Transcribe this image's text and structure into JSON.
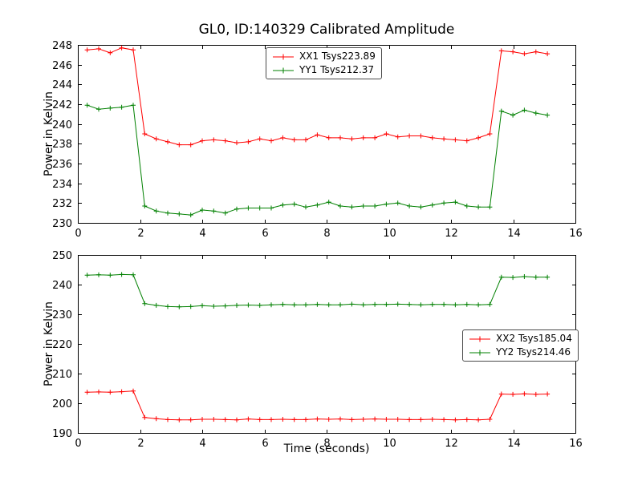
{
  "figure": {
    "background_color": "#ffffff",
    "frame_color": "#000000"
  },
  "chart_data": [
    {
      "type": "line",
      "title": "GL0, ID:140329 Calibrated Amplitude",
      "xlabel": "",
      "ylabel": "Power in Kelvin",
      "xlim": [
        0,
        16
      ],
      "ylim": [
        230,
        248
      ],
      "xticks": [
        0,
        2,
        4,
        6,
        8,
        10,
        12,
        14,
        16
      ],
      "yticks": [
        230,
        232,
        234,
        236,
        238,
        240,
        242,
        244,
        246,
        248
      ],
      "grid": false,
      "marker": "+",
      "legend_position": "upper-center",
      "series": [
        {
          "name": "XX1 Tsys223.89",
          "color": "#ff0000",
          "x": [
            0.3,
            0.67,
            1.04,
            1.41,
            1.78,
            2.15,
            2.52,
            2.89,
            3.26,
            3.63,
            4.0,
            4.37,
            4.74,
            5.11,
            5.48,
            5.85,
            6.22,
            6.59,
            6.96,
            7.33,
            7.7,
            8.07,
            8.44,
            8.81,
            9.18,
            9.55,
            9.92,
            10.29,
            10.66,
            11.03,
            11.4,
            11.77,
            12.14,
            12.51,
            12.88,
            13.25,
            13.62,
            13.99,
            14.36,
            14.73,
            15.1
          ],
          "y": [
            247.5,
            247.6,
            247.2,
            247.7,
            247.5,
            239.0,
            238.5,
            238.2,
            237.9,
            237.9,
            238.3,
            238.4,
            238.3,
            238.1,
            238.2,
            238.5,
            238.3,
            238.6,
            238.4,
            238.4,
            238.9,
            238.6,
            238.6,
            238.5,
            238.6,
            238.6,
            239.0,
            238.7,
            238.8,
            238.8,
            238.6,
            238.5,
            238.4,
            238.3,
            238.6,
            239.0,
            247.4,
            247.3,
            247.1,
            247.3,
            247.1
          ]
        },
        {
          "name": "YY1 Tsys212.37",
          "color": "#008000",
          "x": [
            0.3,
            0.67,
            1.04,
            1.41,
            1.78,
            2.15,
            2.52,
            2.89,
            3.26,
            3.63,
            4.0,
            4.37,
            4.74,
            5.11,
            5.48,
            5.85,
            6.22,
            6.59,
            6.96,
            7.33,
            7.7,
            8.07,
            8.44,
            8.81,
            9.18,
            9.55,
            9.92,
            10.29,
            10.66,
            11.03,
            11.4,
            11.77,
            12.14,
            12.51,
            12.88,
            13.25,
            13.62,
            13.99,
            14.36,
            14.73,
            15.1
          ],
          "y": [
            241.9,
            241.5,
            241.6,
            241.7,
            241.9,
            231.7,
            231.2,
            231.0,
            230.9,
            230.8,
            231.3,
            231.2,
            231.0,
            231.4,
            231.5,
            231.5,
            231.5,
            231.8,
            231.9,
            231.6,
            231.8,
            232.1,
            231.7,
            231.6,
            231.7,
            231.7,
            231.9,
            232.0,
            231.7,
            231.6,
            231.8,
            232.0,
            232.1,
            231.7,
            231.6,
            231.6,
            241.3,
            240.9,
            241.4,
            241.1,
            240.9
          ]
        }
      ]
    },
    {
      "type": "line",
      "title": "",
      "xlabel": "Time (seconds)",
      "ylabel": "Power in Kelvin",
      "xlim": [
        0,
        16
      ],
      "ylim": [
        190,
        250
      ],
      "xticks": [
        0,
        2,
        4,
        6,
        8,
        10,
        12,
        14,
        16
      ],
      "yticks": [
        190,
        200,
        210,
        220,
        230,
        240,
        250
      ],
      "grid": false,
      "marker": "+",
      "legend_position": "center-right",
      "series": [
        {
          "name": "XX2 Tsys185.04",
          "color": "#ff0000",
          "x": [
            0.3,
            0.67,
            1.04,
            1.41,
            1.78,
            2.15,
            2.52,
            2.89,
            3.26,
            3.63,
            4.0,
            4.37,
            4.74,
            5.11,
            5.48,
            5.85,
            6.22,
            6.59,
            6.96,
            7.33,
            7.7,
            8.07,
            8.44,
            8.81,
            9.18,
            9.55,
            9.92,
            10.29,
            10.66,
            11.03,
            11.4,
            11.77,
            12.14,
            12.51,
            12.88,
            13.25,
            13.62,
            13.99,
            14.36,
            14.73,
            15.1
          ],
          "y": [
            203.7,
            203.8,
            203.7,
            203.9,
            204.1,
            195.2,
            194.8,
            194.5,
            194.4,
            194.4,
            194.6,
            194.6,
            194.5,
            194.4,
            194.7,
            194.5,
            194.5,
            194.6,
            194.5,
            194.5,
            194.7,
            194.6,
            194.7,
            194.5,
            194.6,
            194.7,
            194.6,
            194.6,
            194.5,
            194.5,
            194.6,
            194.5,
            194.4,
            194.5,
            194.4,
            194.6,
            203.1,
            203.0,
            203.2,
            203.0,
            203.1
          ]
        },
        {
          "name": "YY2 Tsys214.46",
          "color": "#008000",
          "x": [
            0.3,
            0.67,
            1.04,
            1.41,
            1.78,
            2.15,
            2.52,
            2.89,
            3.26,
            3.63,
            4.0,
            4.37,
            4.74,
            5.11,
            5.48,
            5.85,
            6.22,
            6.59,
            6.96,
            7.33,
            7.7,
            8.07,
            8.44,
            8.81,
            9.18,
            9.55,
            9.92,
            10.29,
            10.66,
            11.03,
            11.4,
            11.77,
            12.14,
            12.51,
            12.88,
            13.25,
            13.62,
            13.99,
            14.36,
            14.73,
            15.1
          ],
          "y": [
            243.2,
            243.3,
            243.2,
            243.4,
            243.3,
            233.6,
            233.0,
            232.6,
            232.5,
            232.6,
            232.9,
            232.7,
            232.8,
            233.0,
            233.1,
            233.0,
            233.2,
            233.3,
            233.2,
            233.2,
            233.3,
            233.2,
            233.2,
            233.4,
            233.2,
            233.3,
            233.3,
            233.4,
            233.3,
            233.2,
            233.3,
            233.3,
            233.2,
            233.3,
            233.2,
            233.3,
            242.5,
            242.4,
            242.7,
            242.5,
            242.5
          ]
        }
      ]
    }
  ]
}
